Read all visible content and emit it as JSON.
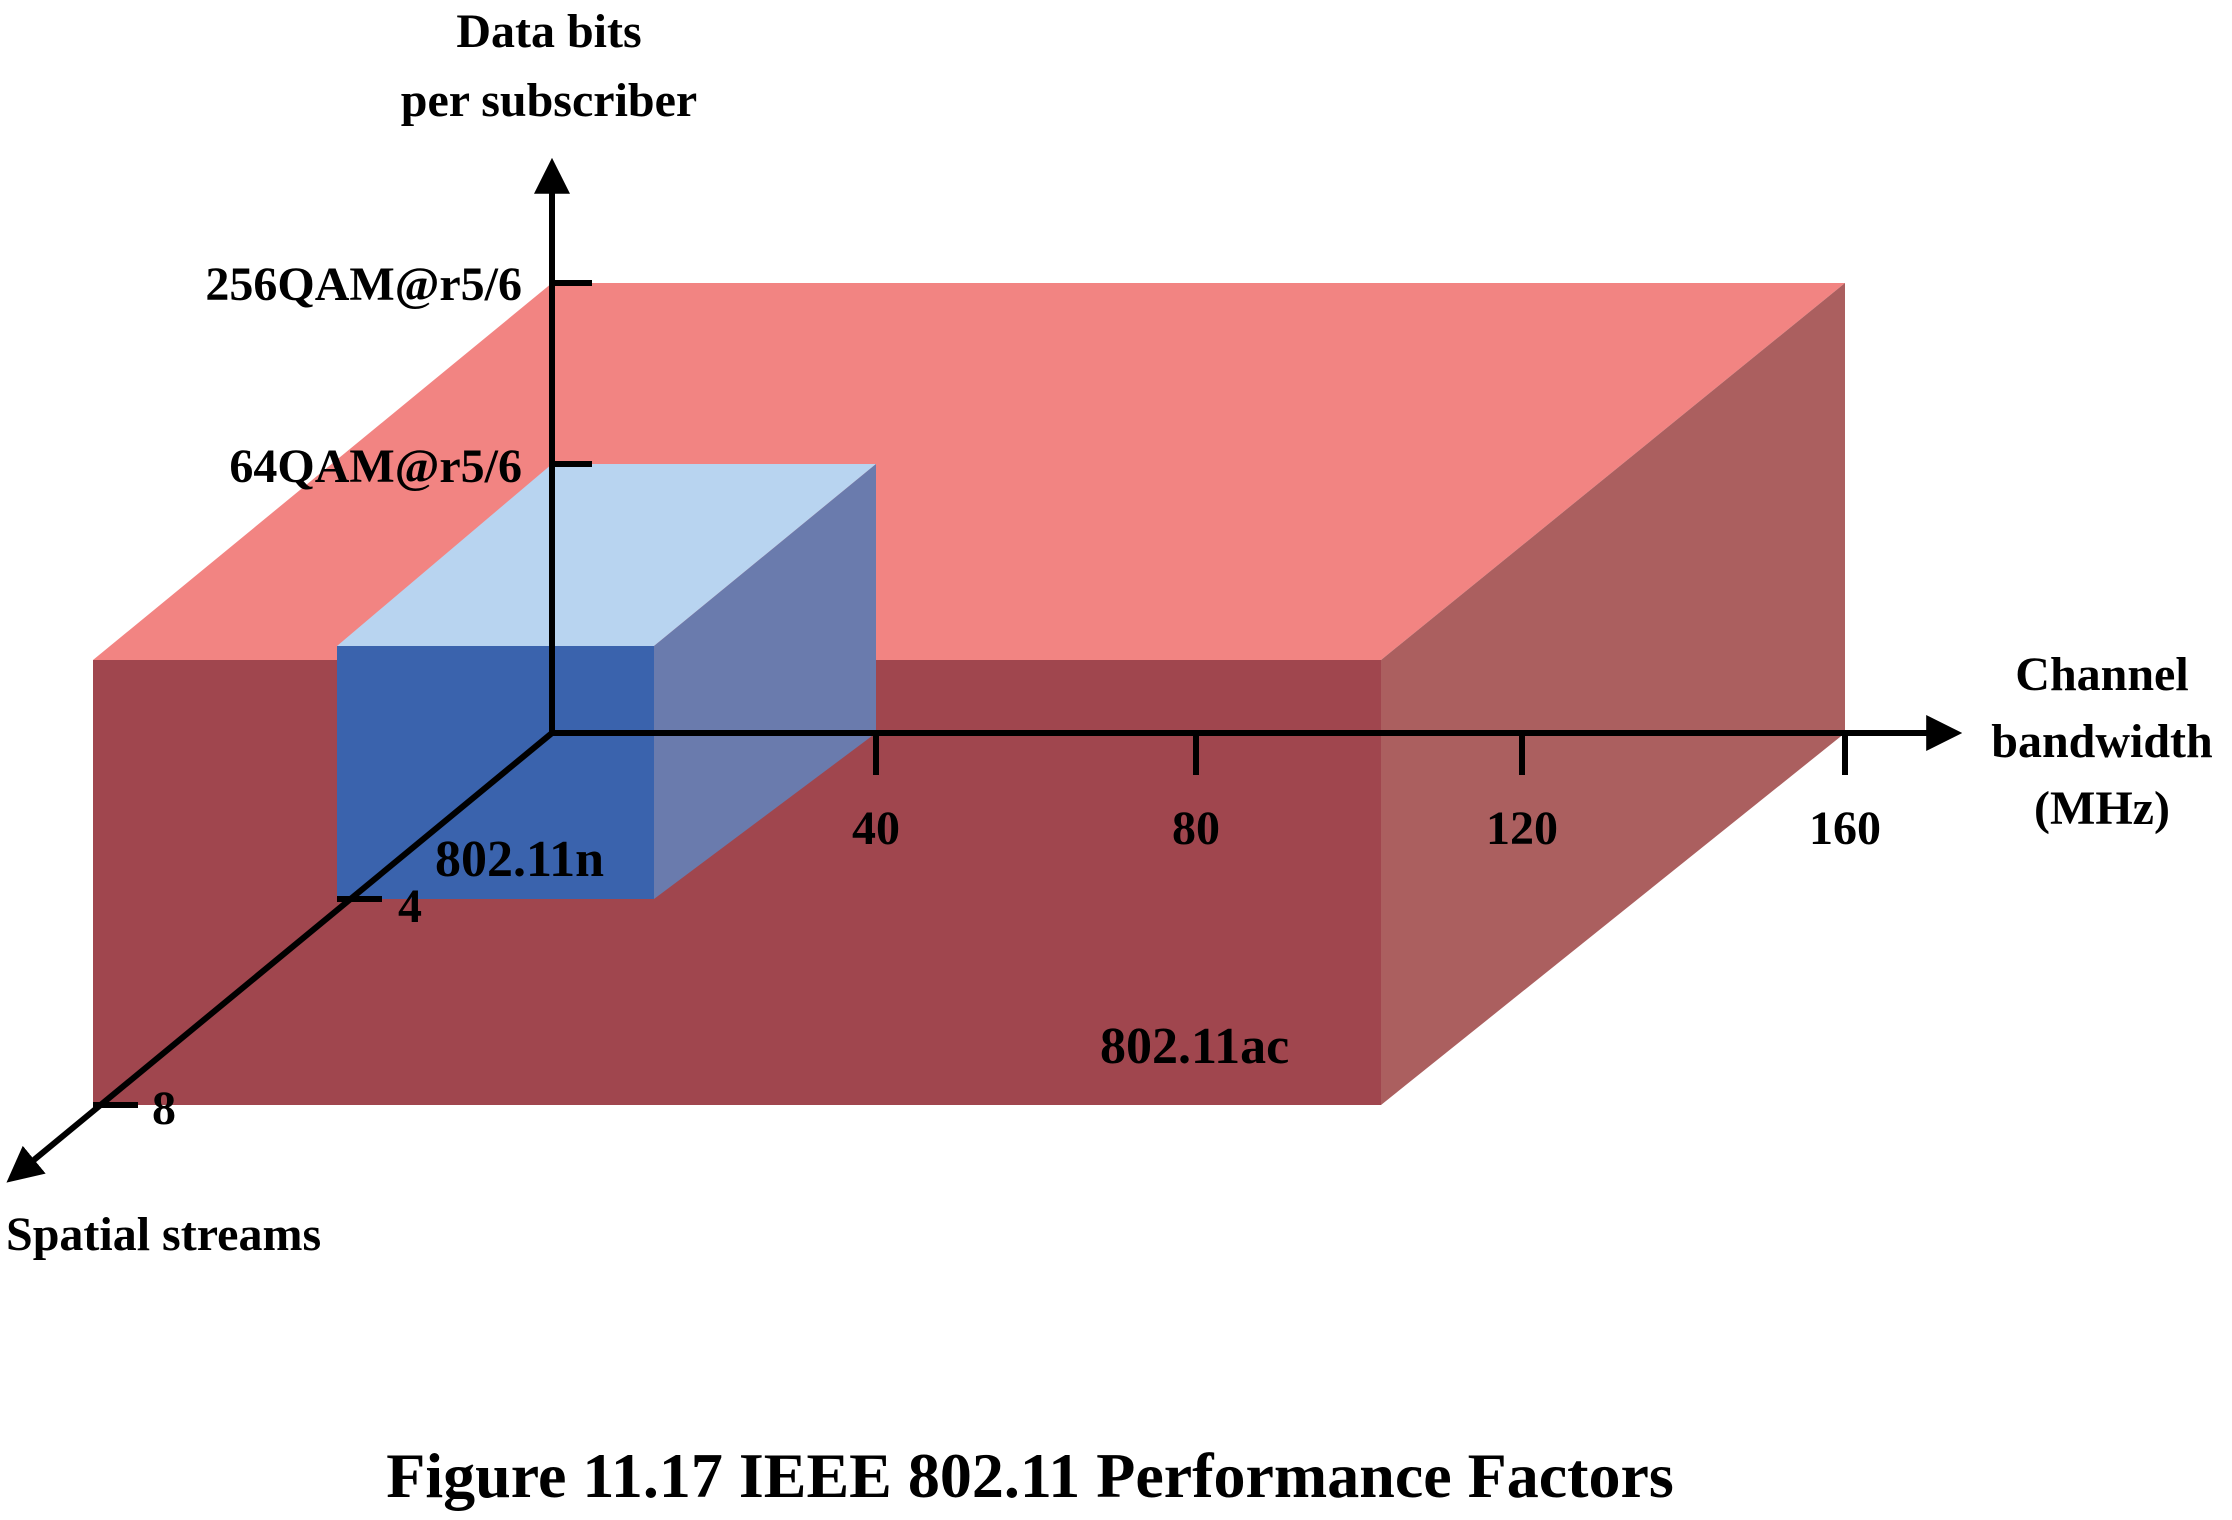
{
  "colors": {
    "ac_top": "#f28482",
    "ac_front": "#a0464e",
    "ac_side": "#ab5f5f",
    "n_top": "#b8d4f0",
    "n_front": "#3a63ad",
    "n_side": "#6a7bad",
    "axis": "#000000"
  },
  "axes": {
    "vertical": {
      "title_line1": "Data bits",
      "title_line2": "per subscriber",
      "ticks": [
        "256QAM@r5/6",
        "64QAM@r5/6"
      ]
    },
    "horizontal": {
      "title_line1": "Channel",
      "title_line2": "bandwidth",
      "title_line3": "(MHz)",
      "ticks": [
        "40",
        "80",
        "120",
        "160"
      ]
    },
    "depth": {
      "title": "Spatial streams",
      "ticks": [
        "4",
        "8"
      ]
    }
  },
  "boxes": {
    "small": {
      "label": "802.11n"
    },
    "large": {
      "label": "802.11ac"
    }
  },
  "caption": "Figure 11.17  IEEE 802.11 Performance Factors"
}
